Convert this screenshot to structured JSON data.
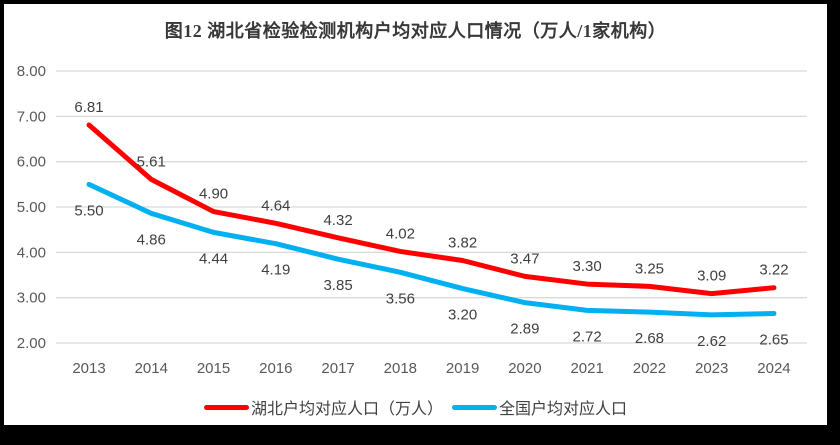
{
  "frame": {
    "border_color": "#000000",
    "background_color": "#ffffff"
  },
  "colors": {
    "gridline": "#d9d9d9",
    "axis_text": "#595959",
    "data_label_text": "#404040",
    "title_text": "#383838"
  },
  "chart_data": {
    "type": "line",
    "title": "图12 湖北省检验检测机构户均对应人口情况（万人/1家机构）",
    "categories": [
      "2013",
      "2014",
      "2015",
      "2016",
      "2017",
      "2018",
      "2019",
      "2020",
      "2021",
      "2022",
      "2023",
      "2024"
    ],
    "series": [
      {
        "name": "湖北户均对应人口（万人）",
        "color": "#ff0000",
        "data_label_position": "above",
        "values": [
          6.81,
          5.61,
          4.9,
          4.64,
          4.32,
          4.02,
          3.82,
          3.47,
          3.3,
          3.25,
          3.09,
          3.22
        ]
      },
      {
        "name": "全国户均对应人口",
        "color": "#00b0f0",
        "data_label_position": "below",
        "values": [
          5.5,
          4.86,
          4.44,
          4.19,
          3.85,
          3.56,
          3.2,
          2.89,
          2.72,
          2.68,
          2.62,
          2.65
        ]
      }
    ],
    "ylim": [
      2,
      8
    ],
    "ytick_interval": 1,
    "ytick_labels": [
      "2.00",
      "3.00",
      "4.00",
      "5.00",
      "6.00",
      "7.00",
      "8.00"
    ],
    "value_format": "0.00",
    "grid": "horizontal-only",
    "legend_position": "bottom",
    "data_labels_shown": true,
    "markers_shown": false
  }
}
